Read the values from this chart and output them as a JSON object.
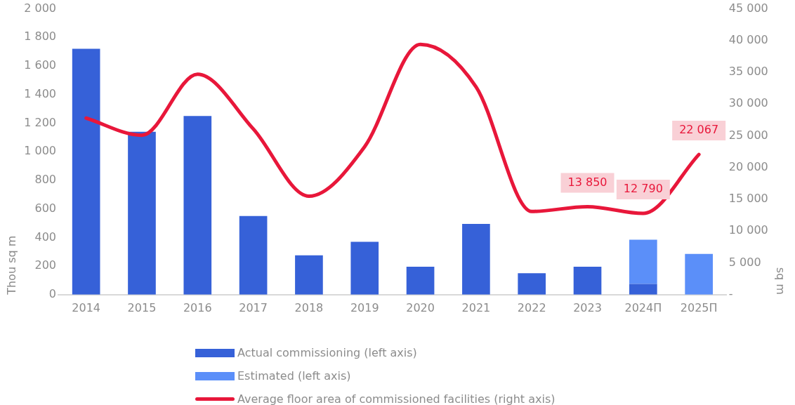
{
  "chart_data": {
    "type": "bar",
    "stacked": true,
    "categories": [
      "2014",
      "2015",
      "2016",
      "2017",
      "2018",
      "2019",
      "2020",
      "2021",
      "2022",
      "2023",
      "2024П",
      "2025П"
    ],
    "series": [
      {
        "name": "Actual commissioning (left axis)",
        "color": "#3661d8",
        "values": [
          1720,
          1140,
          1250,
          550,
          275,
          370,
          195,
          495,
          150,
          195,
          75,
          null
        ]
      },
      {
        "name": "Estimated (left axis)",
        "color": "#5b8ff9",
        "values": [
          null,
          null,
          null,
          null,
          null,
          null,
          null,
          null,
          null,
          null,
          310,
          285
        ]
      },
      {
        "name": "Average floor area of commissioned facilities (right axis)",
        "type": "line",
        "axis": "y2",
        "color": "#e8173a",
        "values": [
          27800,
          25100,
          34700,
          26100,
          15500,
          23300,
          39400,
          32700,
          13100,
          13850,
          12790,
          22067
        ],
        "value_labels": [
          null,
          null,
          null,
          null,
          null,
          null,
          null,
          null,
          null,
          "13 850",
          "12 790",
          "22 067"
        ]
      }
    ],
    "ylabel": "Thou sq m",
    "y2label": "sq m",
    "ylim": [
      0,
      2000
    ],
    "yticks": [
      0,
      200,
      400,
      600,
      800,
      {
        "value": 1000,
        "label": "1 000"
      },
      {
        "value": 1200,
        "label": "1 200"
      },
      {
        "value": 1400,
        "label": "1 400"
      },
      {
        "value": 1600,
        "label": "1 600"
      },
      {
        "value": 1800,
        "label": "1 800"
      },
      {
        "value": 2000,
        "label": "2 000"
      }
    ],
    "y2lim": [
      0,
      45000
    ],
    "y2ticks": [
      {
        "value": 0,
        "label": "-"
      },
      {
        "value": 5000,
        "label": "5 000"
      },
      {
        "value": 10000,
        "label": "10 000"
      },
      {
        "value": 15000,
        "label": "15 000"
      },
      {
        "value": 20000,
        "label": "20 000"
      },
      {
        "value": 25000,
        "label": "25 000"
      },
      {
        "value": 30000,
        "label": "30 000"
      },
      {
        "value": 35000,
        "label": "35 000"
      },
      {
        "value": 40000,
        "label": "40 000"
      },
      {
        "value": 45000,
        "label": "45 000"
      }
    ],
    "grid": false,
    "legend": "bottom",
    "marker": "none",
    "line_style": "solid"
  }
}
